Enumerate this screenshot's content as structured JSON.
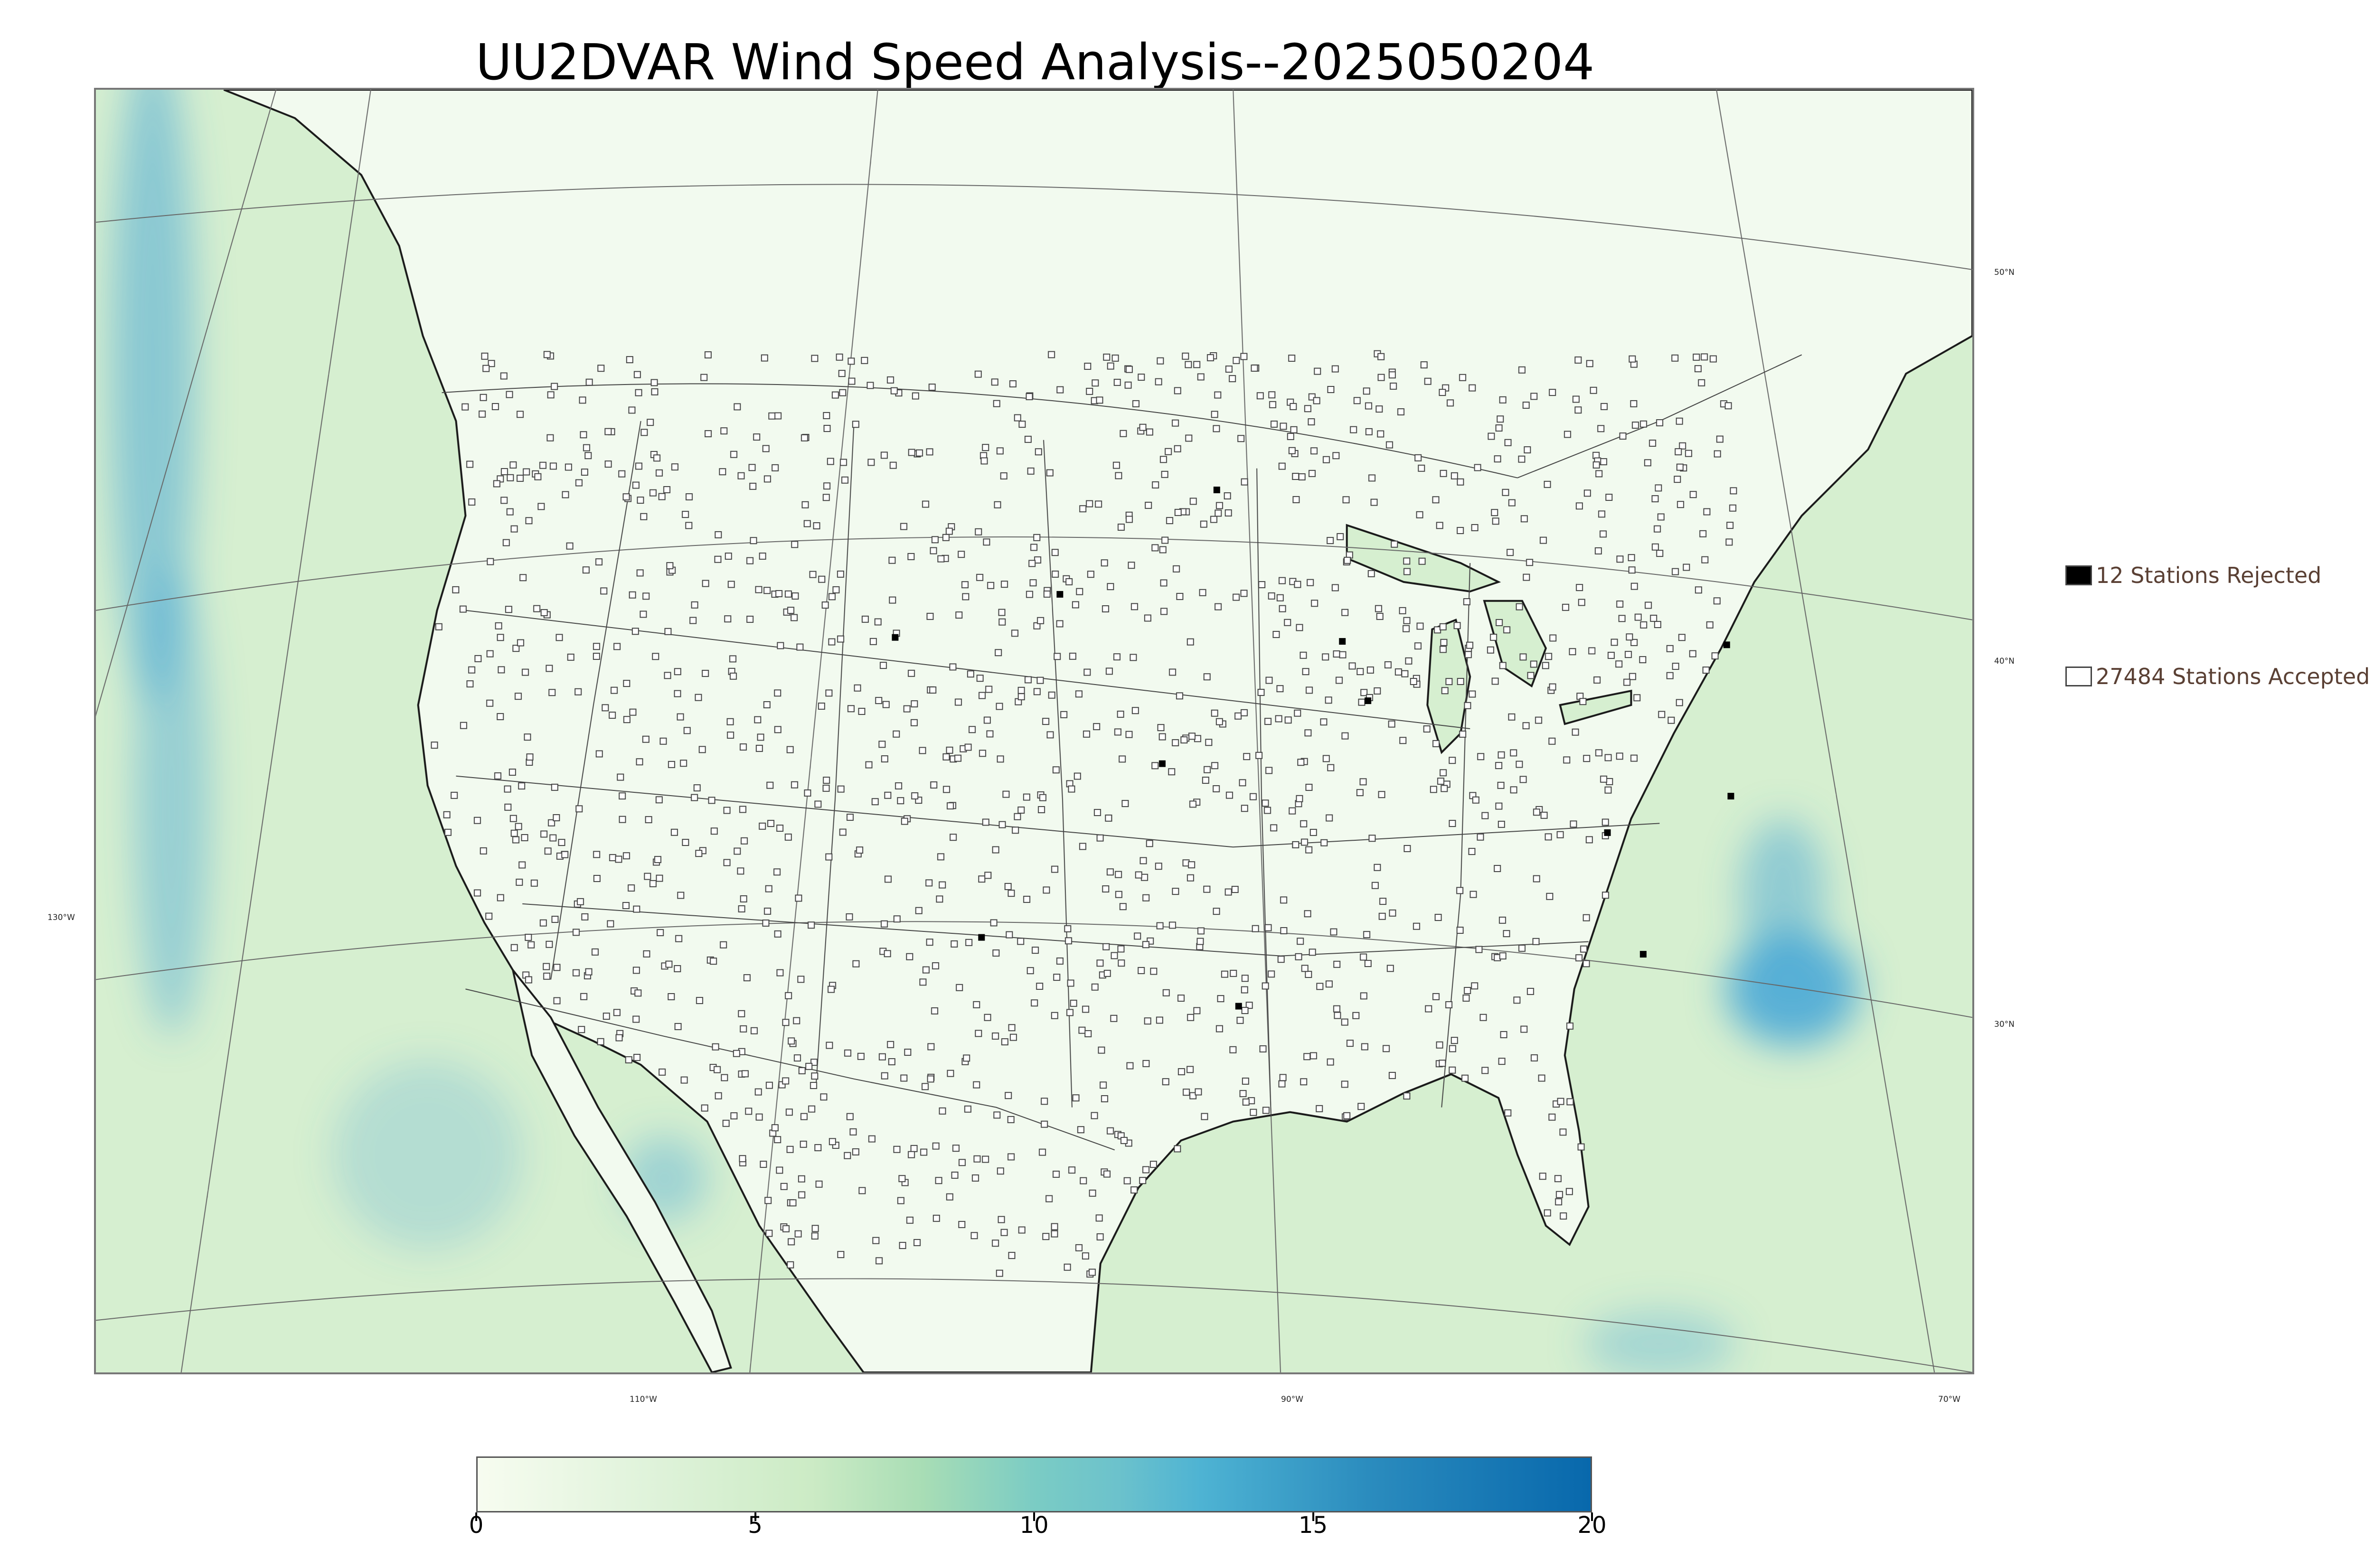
{
  "title": "UU2DVAR Wind Speed Analysis--2025050204",
  "map": {
    "land_color": "#f2faef",
    "ocean_color": "#d6efd0",
    "strong_wind_color": "#4aa8d6",
    "coast_color": "#1a1a1a",
    "border_color": "#444444",
    "grid_color": "#666666",
    "accepted_marker_color": "#ffffff",
    "rejected_marker_color": "#000000"
  },
  "lat_labels": [
    "50°N",
    "40°N",
    "30°N"
  ],
  "lon_labels": [
    "130°W",
    "110°W",
    "90°W",
    "70°W"
  ],
  "legend": {
    "rejected": {
      "label": "12 Stations Rejected",
      "color": "#000000"
    },
    "accepted": {
      "label": "27484 Stations Accepted",
      "color": "#ffffff"
    }
  },
  "colorbar": {
    "min": 0,
    "max": 20,
    "ticks": [
      "0",
      "5",
      "10",
      "15",
      "20"
    ],
    "stops": [
      {
        "value": 0,
        "color": "#f7fcf0"
      },
      {
        "value": 3,
        "color": "#e0f3db"
      },
      {
        "value": 6,
        "color": "#ccebc5"
      },
      {
        "value": 8,
        "color": "#a8ddb5"
      },
      {
        "value": 10,
        "color": "#7bccc4"
      },
      {
        "value": 11.5,
        "color": "#6cc2cc"
      },
      {
        "value": 13,
        "color": "#4eb3d3"
      },
      {
        "value": 16,
        "color": "#2b8cbe"
      },
      {
        "value": 20,
        "color": "#0868ac"
      }
    ]
  }
}
